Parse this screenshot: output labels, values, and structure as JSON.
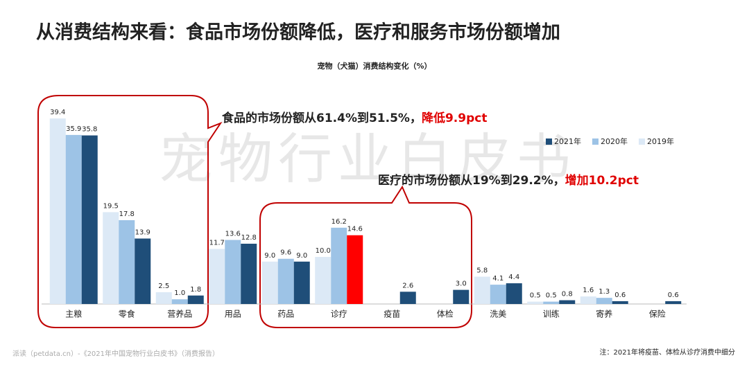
{
  "heading": "从消费结构来看：食品市场份额降低，医疗和服务市场份额增加",
  "watermark": "宠物行业白皮书",
  "chart_data": {
    "type": "bar",
    "title": "宠物（犬猫）消费结构变化（%）",
    "categories": [
      "主粮",
      "零食",
      "营养品",
      "用品",
      "药品",
      "诊疗",
      "疫苗",
      "体检",
      "洗美",
      "训练",
      "寄养",
      "保险"
    ],
    "series": [
      {
        "name": "2021年",
        "color": "#1f4e79",
        "colors": [
          "#1f4e79",
          "#1f4e79",
          "#1f4e79",
          "#1f4e79",
          "#1f4e79",
          "#ff0000",
          "#1f4e79",
          "#1f4e79",
          "#1f4e79",
          "#1f4e79",
          "#1f4e79",
          "#1f4e79"
        ],
        "values": [
          35.8,
          13.9,
          1.8,
          12.8,
          9.0,
          14.6,
          2.6,
          3.0,
          4.4,
          0.8,
          0.6,
          0.6
        ],
        "value_labels": [
          "35.8",
          "13.9",
          "1.8",
          "12.8",
          "9.0",
          "14.6",
          "2.6",
          "3.0",
          "4.4",
          "0.8",
          "0.6",
          "0.6"
        ]
      },
      {
        "name": "2020年",
        "color": "#9dc3e6",
        "values": [
          35.9,
          17.8,
          1.0,
          13.6,
          9.6,
          16.2,
          null,
          null,
          4.1,
          0.5,
          1.3,
          null
        ],
        "value_labels": [
          "35.9",
          "17.8",
          "1.0",
          "13.6",
          "9.6",
          "16.2",
          null,
          null,
          "4.1",
          "0.5",
          "1.3",
          null
        ]
      },
      {
        "name": "2019年",
        "color": "#dce9f6",
        "values": [
          39.4,
          19.5,
          2.5,
          11.7,
          9.0,
          10.0,
          null,
          null,
          5.8,
          0.5,
          1.6,
          null
        ],
        "value_labels": [
          "39.4",
          "19.5",
          "2.5",
          "11.7",
          "9.0",
          "10.0",
          null,
          null,
          "5.8",
          "0.5",
          "1.6",
          null
        ]
      }
    ],
    "legend": "top-right",
    "annotations": [
      {
        "text": "食品的市场份额从61.4%到51.5%，",
        "highlight": "降低9.9pct"
      },
      {
        "text": "医疗的市场份额从19%到29.2%，",
        "highlight": "增加10.2pct"
      }
    ]
  },
  "footer": {
    "source": "派读（petdata.cn）-《2021年中国宠物行业白皮书》（消费报告）",
    "note": "注：2021年将疫苗、体检从诊疗消费中细分"
  }
}
